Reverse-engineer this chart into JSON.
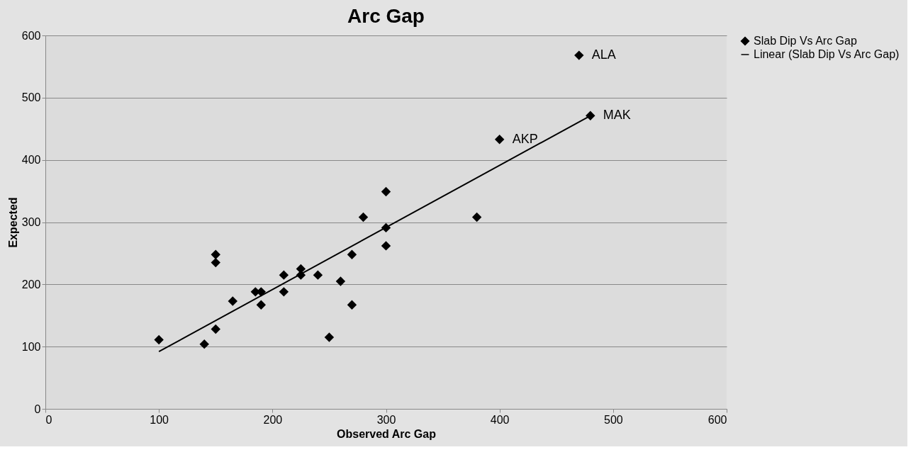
{
  "chart_data": {
    "type": "scatter",
    "title": "Arc Gap",
    "xlabel": "Observed Arc Gap",
    "ylabel": "Expected",
    "xlim": [
      0,
      600
    ],
    "xticks": [
      0,
      100,
      200,
      300,
      400,
      500,
      600
    ],
    "ylim": [
      0,
      600
    ],
    "yticks": [
      0,
      100,
      200,
      300,
      400,
      500,
      600
    ],
    "grid": "y",
    "legend": "right",
    "series": [
      {
        "name": "Slab Dip Vs Arc Gap",
        "marker": "diamond",
        "color": "#000000",
        "x": [
          100,
          140,
          150,
          150,
          150,
          165,
          185,
          190,
          190,
          210,
          210,
          225,
          225,
          240,
          250,
          260,
          270,
          270,
          280,
          300,
          300,
          300,
          380,
          400,
          470,
          480
        ],
        "values": [
          111,
          104,
          248,
          235,
          128,
          173,
          188,
          188,
          167,
          215,
          188,
          225,
          215,
          215,
          115,
          205,
          248,
          167,
          308,
          349,
          291,
          262,
          308,
          433,
          568,
          471
        ]
      },
      {
        "name": "Linear (Slab Dip Vs Arc Gap)",
        "type": "line",
        "marker": "none",
        "color": "#000000",
        "x": [
          100,
          480
        ],
        "values": [
          92,
          471
        ]
      }
    ],
    "annotations": [
      {
        "text": "ALA",
        "x": 470,
        "y": 568
      },
      {
        "text": "AKP",
        "x": 400,
        "y": 433
      },
      {
        "text": "MAK",
        "x": 480,
        "y": 471
      }
    ]
  }
}
